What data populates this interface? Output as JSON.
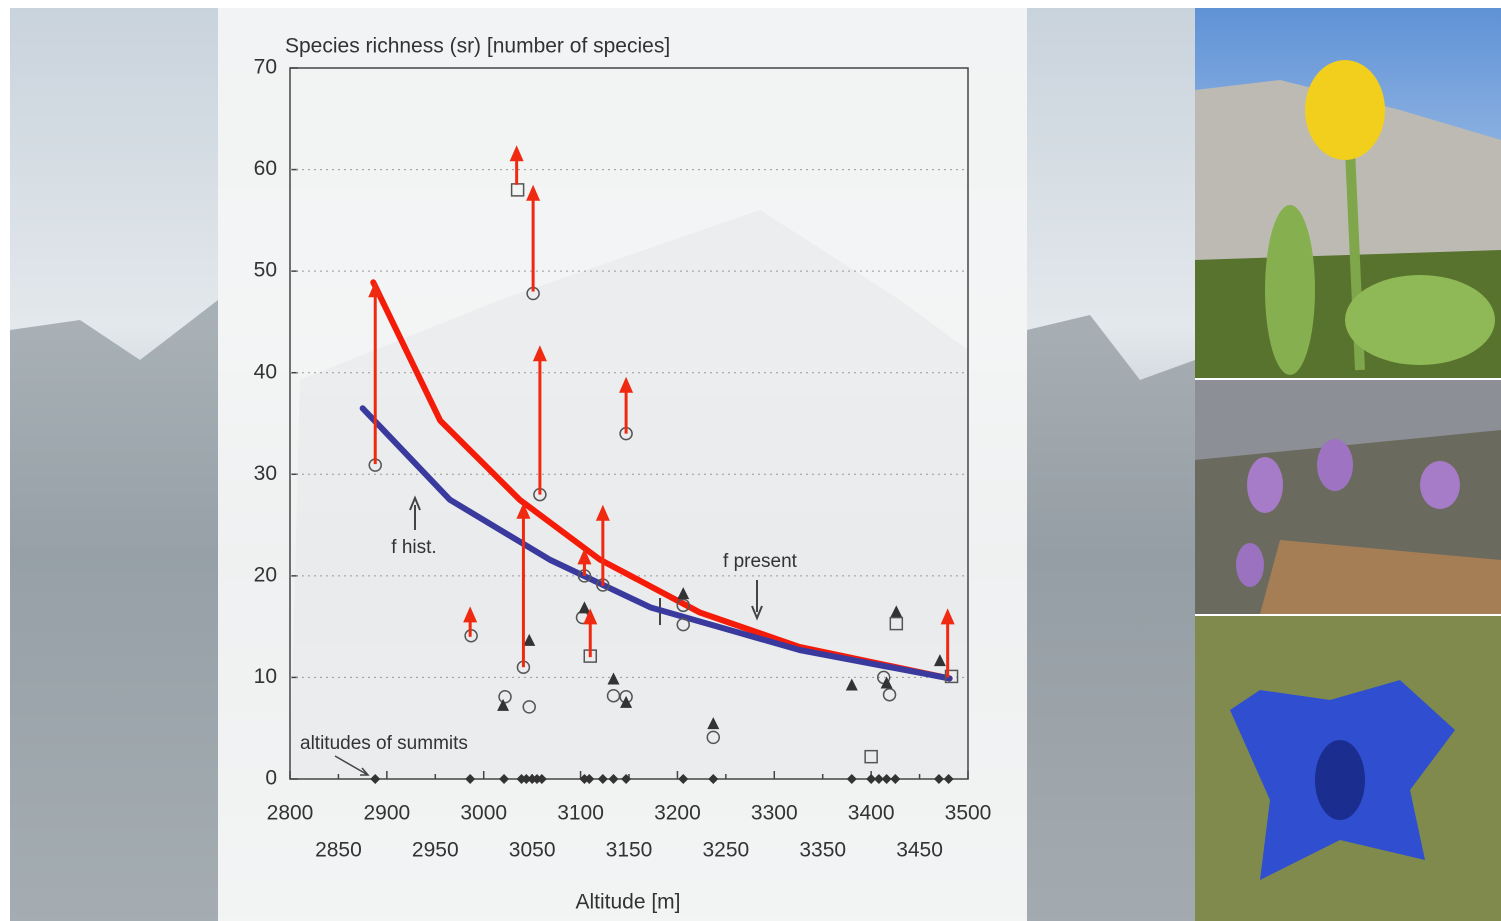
{
  "chart_data": {
    "type": "scatter",
    "title": "Species richness (sr)  [number of species]",
    "xlabel": "Altitude [m]",
    "xlim": [
      2800,
      3500
    ],
    "ylim": [
      0,
      70
    ],
    "xticks": [
      2800,
      2850,
      2900,
      2950,
      3000,
      3050,
      3100,
      3150,
      3200,
      3250,
      3300,
      3350,
      3400,
      3450,
      3500
    ],
    "yticks": [
      0,
      10,
      20,
      30,
      40,
      50,
      60,
      70
    ],
    "grid": true,
    "series": [
      {
        "marker": "circle",
        "color": "#555555",
        "x": [
          2888,
          2987,
          3051,
          3058,
          3147,
          3041,
          3022,
          3047,
          3104,
          3123,
          3102,
          3134,
          3147,
          3206,
          3206,
          3237,
          3419,
          3413
        ],
        "values": [
          30.9,
          14.1,
          47.8,
          28,
          34,
          11,
          8.1,
          7.1,
          20,
          19.1,
          15.9,
          8.2,
          8.1,
          17.1,
          15.2,
          4.1,
          8.3,
          10
        ]
      },
      {
        "marker": "triangle",
        "color": "#333333",
        "x": [
          3020,
          3047,
          3104,
          3134,
          3147,
          3206,
          3237,
          3380,
          3416,
          3426,
          3471
        ],
        "values": [
          7.2,
          13.6,
          16.8,
          9.8,
          7.5,
          18.2,
          5.4,
          9.2,
          9.4,
          16.4,
          11.6
        ]
      },
      {
        "marker": "square",
        "color": "#555555",
        "x": [
          3035,
          3110,
          3426,
          3400,
          3483
        ],
        "values": [
          58,
          12.1,
          15.3,
          2.2,
          10.1
        ]
      },
      {
        "marker": "diamond",
        "color": "#333333",
        "x": [
          2888,
          2986,
          3021,
          3039,
          3044,
          3050,
          3055,
          3060,
          3104,
          3109,
          3123,
          3134,
          3147,
          3206,
          3237,
          3380,
          3400,
          3408,
          3416,
          3425,
          3470,
          3480
        ],
        "values": [
          0,
          0,
          0,
          0,
          0,
          0,
          0,
          0,
          0,
          0,
          0,
          0,
          0,
          0,
          0,
          0,
          0,
          0,
          0,
          0,
          0,
          0
        ]
      }
    ],
    "arrows": {
      "color": "#f02a10",
      "items": [
        {
          "x": 2888,
          "from": 31,
          "to": 49
        },
        {
          "x": 2986,
          "from": 14,
          "to": 17
        },
        {
          "x": 3034,
          "from": 58.5,
          "to": 62.4
        },
        {
          "x": 3051,
          "from": 48,
          "to": 58.5
        },
        {
          "x": 3058,
          "from": 28,
          "to": 42.7
        },
        {
          "x": 3041,
          "from": 11,
          "to": 27.2
        },
        {
          "x": 3104,
          "from": 20,
          "to": 22.7
        },
        {
          "x": 3123,
          "from": 19,
          "to": 27
        },
        {
          "x": 3110,
          "from": 12,
          "to": 16.8
        },
        {
          "x": 3147,
          "from": 34,
          "to": 39.6
        },
        {
          "x": 3479,
          "from": 10,
          "to": 16.8
        }
      ]
    },
    "curves": [
      {
        "color": "#f41c08",
        "x": [
          2886,
          2955,
          3037,
          3120,
          3223,
          3326,
          3481
        ],
        "values": [
          48.9,
          35.3,
          27.5,
          21.6,
          16.4,
          13,
          9.9
        ]
      },
      {
        "color": "#3a3a9e",
        "x": [
          2875,
          2965,
          3068,
          3172,
          3326,
          3481
        ],
        "values": [
          36.5,
          27.5,
          21.6,
          16.9,
          12.7,
          9.9
        ]
      }
    ],
    "annotations": [
      "f hist.",
      "f present",
      "altitudes of summits"
    ]
  }
}
